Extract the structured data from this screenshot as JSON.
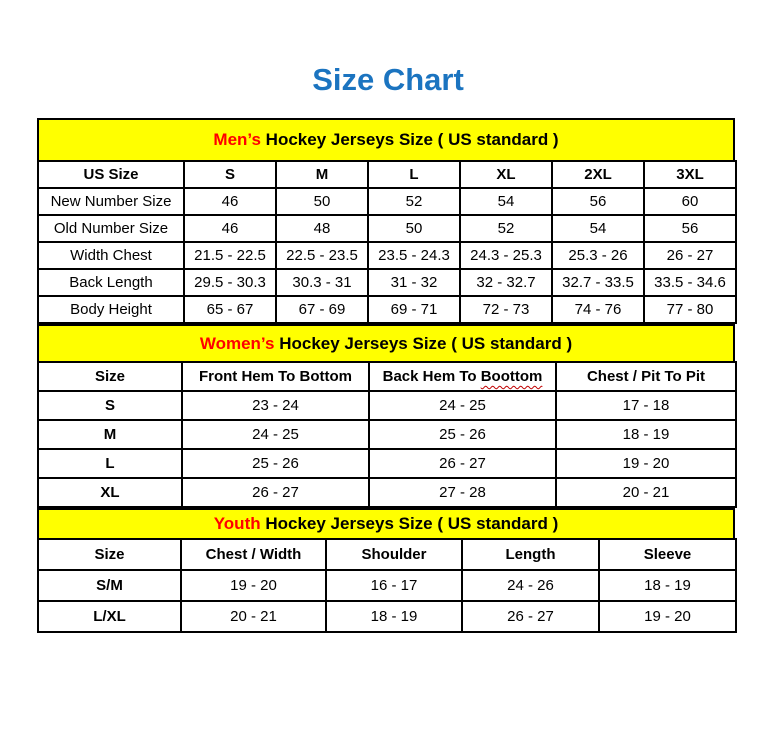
{
  "page": {
    "title": "Size Chart"
  },
  "colors": {
    "title_blue": "#1b74c0",
    "band_yellow": "#ffff00",
    "accent_red": "#ff0000",
    "border_black": "#000000",
    "squiggle_red": "#c00000"
  },
  "mens": {
    "band": {
      "accent": "Men’s",
      "rest": " Hockey Jerseys Size ( US standard )"
    },
    "columns": [
      "US Size",
      "S",
      "M",
      "L",
      "XL",
      "2XL",
      "3XL"
    ],
    "rows": [
      {
        "label": "New Number Size",
        "values": [
          "46",
          "50",
          "52",
          "54",
          "56",
          "60"
        ]
      },
      {
        "label": "Old Number Size",
        "values": [
          "46",
          "48",
          "50",
          "52",
          "54",
          "56"
        ]
      },
      {
        "label": "Width Chest",
        "values": [
          "21.5 - 22.5",
          "22.5 - 23.5",
          "23.5 - 24.3",
          "24.3 - 25.3",
          "25.3 - 26",
          "26 - 27"
        ]
      },
      {
        "label": "Back Length",
        "values": [
          "29.5 - 30.3",
          "30.3 - 31",
          "31 - 32",
          "32 - 32.7",
          "32.7 - 33.5",
          "33.5 - 34.6"
        ]
      },
      {
        "label": "Body Height",
        "values": [
          "65 - 67",
          "67 - 69",
          "69 - 71",
          "72 - 73",
          "74 - 76",
          "77 - 80"
        ]
      }
    ]
  },
  "womens": {
    "band": {
      "accent": "Women’s",
      "rest": " Hockey Jerseys Size ( US standard )"
    },
    "columns": [
      "Size",
      "Front Hem To Bottom",
      {
        "text": "Back Hem To ",
        "squiggle": "Boottom"
      },
      "Chest / Pit To Pit"
    ],
    "rows": [
      {
        "label": "S",
        "values": [
          "23 - 24",
          "24 - 25",
          "17 - 18"
        ]
      },
      {
        "label": "M",
        "values": [
          "24 - 25",
          "25 - 26",
          "18 - 19"
        ]
      },
      {
        "label": "L",
        "values": [
          "25 - 26",
          "26 - 27",
          "19 - 20"
        ]
      },
      {
        "label": "XL",
        "values": [
          "26 - 27",
          "27 - 28",
          "20 - 21"
        ]
      }
    ]
  },
  "youth": {
    "band": {
      "accent": "Youth",
      "rest": " Hockey Jerseys Size ( US standard )"
    },
    "columns": [
      "Size",
      "Chest / Width",
      "Shoulder",
      "Length",
      "Sleeve"
    ],
    "rows": [
      {
        "label": "S/M",
        "values": [
          "19 - 20",
          "16 - 17",
          "24 - 26",
          "18 - 19"
        ]
      },
      {
        "label": "L/XL",
        "values": [
          "20 - 21",
          "18 - 19",
          "26 - 27",
          "19 - 20"
        ]
      }
    ]
  }
}
